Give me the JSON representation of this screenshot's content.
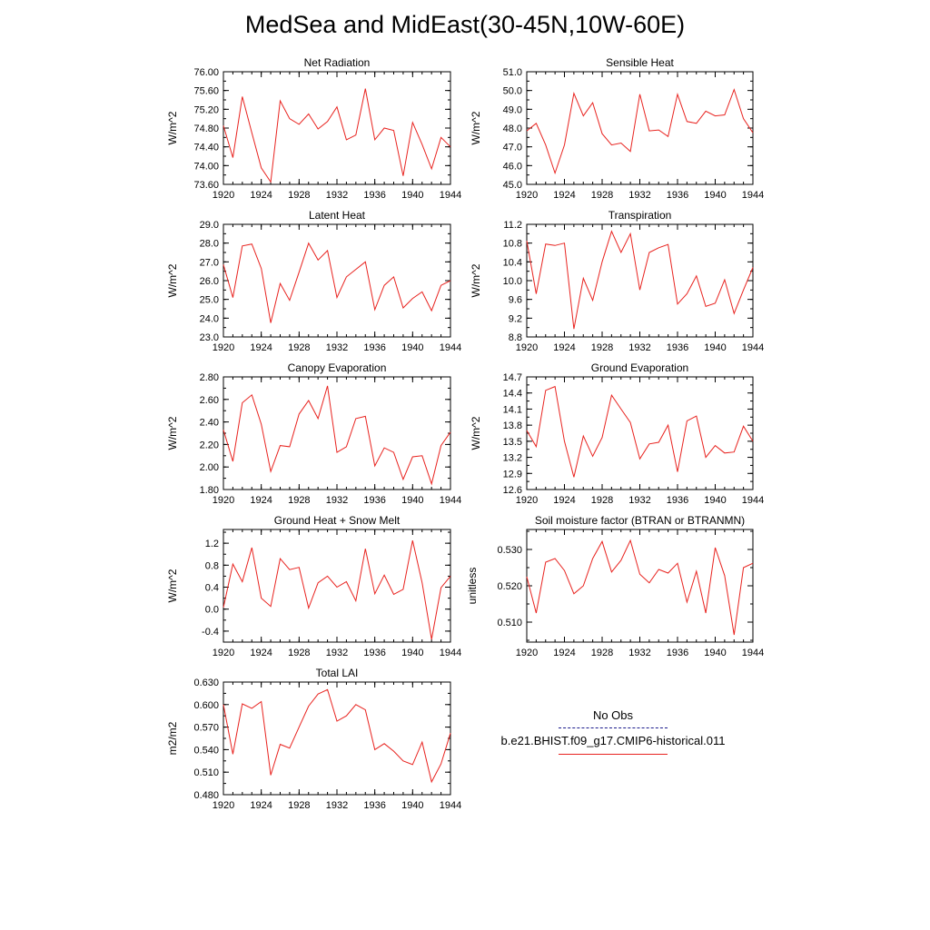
{
  "title": "MedSea and MidEast(30-45N,10W-60E)",
  "legend": {
    "obs_label": "No Obs",
    "obs_color": "#1a1a8c",
    "model_label": "b.e21.BHIST.f09_g17.CMIP6-historical.011",
    "model_color": "#e8231f"
  },
  "chart_data": [
    {
      "type": "line",
      "title": "Net Radiation",
      "ylabel": "W/m^2",
      "xlim": [
        1920,
        1944
      ],
      "ylim": [
        73.6,
        76.0
      ],
      "xticks": [
        1920,
        1924,
        1928,
        1932,
        1936,
        1940,
        1944
      ],
      "yticks": [
        "73.60",
        "74.00",
        "74.40",
        "74.80",
        "75.20",
        "75.60",
        "76.00"
      ],
      "x": [
        1920,
        1921,
        1922,
        1923,
        1924,
        1925,
        1926,
        1927,
        1928,
        1929,
        1930,
        1931,
        1932,
        1933,
        1934,
        1935,
        1936,
        1937,
        1938,
        1939,
        1940,
        1941,
        1942,
        1943,
        1944
      ],
      "series": [
        {
          "values": [
            74.85,
            74.17,
            75.47,
            74.7,
            73.95,
            73.65,
            75.38,
            75.0,
            74.88,
            75.1,
            74.78,
            74.94,
            75.25,
            74.55,
            74.65,
            75.64,
            74.55,
            74.8,
            74.75,
            73.78,
            74.92,
            74.45,
            73.93,
            74.6,
            74.4
          ]
        }
      ]
    },
    {
      "type": "line",
      "title": "Sensible Heat",
      "ylabel": "W/m^2",
      "xlim": [
        1920,
        1944
      ],
      "ylim": [
        45.0,
        51.0
      ],
      "xticks": [
        1920,
        1924,
        1928,
        1932,
        1936,
        1940,
        1944
      ],
      "yticks": [
        "45.0",
        "46.0",
        "47.0",
        "48.0",
        "49.0",
        "50.0",
        "51.0"
      ],
      "x": [
        1920,
        1921,
        1922,
        1923,
        1924,
        1925,
        1926,
        1927,
        1928,
        1929,
        1930,
        1931,
        1932,
        1933,
        1934,
        1935,
        1936,
        1937,
        1938,
        1939,
        1940,
        1941,
        1942,
        1943,
        1944
      ],
      "series": [
        {
          "values": [
            47.85,
            48.25,
            47.1,
            45.6,
            47.1,
            49.85,
            48.65,
            49.35,
            47.7,
            47.1,
            47.2,
            46.75,
            49.8,
            47.85,
            47.9,
            47.55,
            49.8,
            48.35,
            48.25,
            48.9,
            48.65,
            48.7,
            50.05,
            48.5,
            47.75
          ]
        }
      ]
    },
    {
      "type": "line",
      "title": "Latent Heat",
      "ylabel": "W/m^2",
      "xlim": [
        1920,
        1944
      ],
      "ylim": [
        23.0,
        29.0
      ],
      "xticks": [
        1920,
        1924,
        1928,
        1932,
        1936,
        1940,
        1944
      ],
      "yticks": [
        "23.0",
        "24.0",
        "25.0",
        "26.0",
        "27.0",
        "28.0",
        "29.0"
      ],
      "x": [
        1920,
        1921,
        1922,
        1923,
        1924,
        1925,
        1926,
        1927,
        1928,
        1929,
        1930,
        1931,
        1932,
        1933,
        1934,
        1935,
        1936,
        1937,
        1938,
        1939,
        1940,
        1941,
        1942,
        1943,
        1944
      ],
      "series": [
        {
          "values": [
            26.85,
            25.1,
            27.85,
            27.95,
            26.65,
            23.75,
            25.85,
            24.95,
            26.45,
            28.0,
            27.1,
            27.6,
            25.1,
            26.2,
            26.6,
            27.0,
            24.45,
            25.75,
            26.2,
            24.55,
            25.05,
            25.4,
            24.4,
            25.75,
            26.0
          ]
        }
      ]
    },
    {
      "type": "line",
      "title": "Transpiration",
      "ylabel": "W/m^2",
      "xlim": [
        1920,
        1944
      ],
      "ylim": [
        8.8,
        11.2
      ],
      "xticks": [
        1920,
        1924,
        1928,
        1932,
        1936,
        1940,
        1944
      ],
      "yticks": [
        "8.8",
        "9.2",
        "9.6",
        "10.0",
        "10.4",
        "10.8",
        "11.2"
      ],
      "x": [
        1920,
        1921,
        1922,
        1923,
        1924,
        1925,
        1926,
        1927,
        1928,
        1929,
        1930,
        1931,
        1932,
        1933,
        1934,
        1935,
        1936,
        1937,
        1938,
        1939,
        1940,
        1941,
        1942,
        1943,
        1944
      ],
      "series": [
        {
          "values": [
            10.85,
            9.72,
            10.78,
            10.75,
            10.8,
            8.97,
            10.05,
            9.58,
            10.4,
            11.05,
            10.6,
            11.0,
            9.8,
            10.6,
            10.7,
            10.77,
            9.5,
            9.72,
            10.1,
            9.45,
            9.52,
            10.02,
            9.3,
            9.8,
            10.28
          ]
        }
      ]
    },
    {
      "type": "line",
      "title": "Canopy Evaporation",
      "ylabel": "W/m^2",
      "xlim": [
        1920,
        1944
      ],
      "ylim": [
        1.8,
        2.8
      ],
      "xticks": [
        1920,
        1924,
        1928,
        1932,
        1936,
        1940,
        1944
      ],
      "yticks": [
        "1.80",
        "2.00",
        "2.20",
        "2.40",
        "2.60",
        "2.80"
      ],
      "x": [
        1920,
        1921,
        1922,
        1923,
        1924,
        1925,
        1926,
        1927,
        1928,
        1929,
        1930,
        1931,
        1932,
        1933,
        1934,
        1935,
        1936,
        1937,
        1938,
        1939,
        1940,
        1941,
        1942,
        1943,
        1944
      ],
      "series": [
        {
          "values": [
            2.33,
            2.05,
            2.57,
            2.64,
            2.38,
            1.96,
            2.19,
            2.18,
            2.47,
            2.59,
            2.43,
            2.72,
            2.13,
            2.18,
            2.43,
            2.45,
            2.01,
            2.17,
            2.13,
            1.89,
            2.09,
            2.1,
            1.85,
            2.19,
            2.31
          ]
        }
      ]
    },
    {
      "type": "line",
      "title": "Ground Evaporation",
      "ylabel": "W/m^2",
      "xlim": [
        1920,
        1944
      ],
      "ylim": [
        12.6,
        14.7
      ],
      "xticks": [
        1920,
        1924,
        1928,
        1932,
        1936,
        1940,
        1944
      ],
      "yticks": [
        "12.6",
        "12.9",
        "13.2",
        "13.5",
        "13.8",
        "14.1",
        "14.4",
        "14.7"
      ],
      "x": [
        1920,
        1921,
        1922,
        1923,
        1924,
        1925,
        1926,
        1927,
        1928,
        1929,
        1930,
        1931,
        1932,
        1933,
        1934,
        1935,
        1936,
        1937,
        1938,
        1939,
        1940,
        1941,
        1942,
        1943,
        1944
      ],
      "series": [
        {
          "values": [
            13.7,
            13.4,
            14.45,
            14.52,
            13.5,
            12.83,
            13.6,
            13.22,
            13.57,
            14.36,
            14.1,
            13.85,
            13.17,
            13.45,
            13.48,
            13.8,
            12.93,
            13.88,
            13.97,
            13.2,
            13.42,
            13.28,
            13.3,
            13.78,
            13.5
          ]
        }
      ]
    },
    {
      "type": "line",
      "title": "Ground Heat + Snow Melt",
      "ylabel": "W/m^2",
      "xlim": [
        1920,
        1944
      ],
      "ylim": [
        -0.6,
        1.45
      ],
      "xticks": [
        1920,
        1924,
        1928,
        1932,
        1936,
        1940,
        1944
      ],
      "yticks": [
        "-0.4",
        "0.0",
        "0.4",
        "0.8",
        "1.2"
      ],
      "x": [
        1920,
        1921,
        1922,
        1923,
        1924,
        1925,
        1926,
        1927,
        1928,
        1929,
        1930,
        1931,
        1932,
        1933,
        1934,
        1935,
        1936,
        1937,
        1938,
        1939,
        1940,
        1941,
        1942,
        1943,
        1944
      ],
      "series": [
        {
          "values": [
            0.03,
            0.82,
            0.5,
            1.12,
            0.2,
            0.05,
            0.92,
            0.72,
            0.76,
            0.02,
            0.48,
            0.6,
            0.4,
            0.5,
            0.15,
            1.1,
            0.28,
            0.62,
            0.27,
            0.36,
            1.25,
            0.48,
            -0.55,
            0.39,
            0.6
          ]
        }
      ]
    },
    {
      "type": "line",
      "title": "Soil moisture factor (BTRAN or BTRANMN)",
      "ylabel": "unitless",
      "xlim": [
        1920,
        1944
      ],
      "ylim": [
        0.5045,
        0.5355
      ],
      "xticks": [
        1920,
        1924,
        1928,
        1932,
        1936,
        1940,
        1944
      ],
      "yticks": [
        "0.510",
        "0.520",
        "0.530"
      ],
      "x": [
        1920,
        1921,
        1922,
        1923,
        1924,
        1925,
        1926,
        1927,
        1928,
        1929,
        1930,
        1931,
        1932,
        1933,
        1934,
        1935,
        1936,
        1937,
        1938,
        1939,
        1940,
        1941,
        1942,
        1943,
        1944
      ],
      "series": [
        {
          "values": [
            0.5225,
            0.5125,
            0.5265,
            0.5275,
            0.5242,
            0.5178,
            0.52,
            0.5275,
            0.5322,
            0.5238,
            0.527,
            0.5325,
            0.5232,
            0.5208,
            0.5245,
            0.5235,
            0.5262,
            0.5155,
            0.524,
            0.5125,
            0.5305,
            0.5228,
            0.5065,
            0.525,
            0.5262
          ]
        }
      ]
    },
    {
      "type": "line",
      "title": "Total LAI",
      "ylabel": "m2/m2",
      "xlim": [
        1920,
        1944
      ],
      "ylim": [
        0.48,
        0.63
      ],
      "xticks": [
        1920,
        1924,
        1928,
        1932,
        1936,
        1940,
        1944
      ],
      "yticks": [
        "0.480",
        "0.510",
        "0.540",
        "0.570",
        "0.600",
        "0.630"
      ],
      "x": [
        1920,
        1921,
        1922,
        1923,
        1924,
        1925,
        1926,
        1927,
        1928,
        1929,
        1930,
        1931,
        1932,
        1933,
        1934,
        1935,
        1936,
        1937,
        1938,
        1939,
        1940,
        1941,
        1942,
        1943,
        1944
      ],
      "series": [
        {
          "values": [
            0.6,
            0.534,
            0.601,
            0.595,
            0.604,
            0.506,
            0.547,
            0.542,
            0.57,
            0.598,
            0.614,
            0.62,
            0.578,
            0.585,
            0.6,
            0.593,
            0.54,
            0.548,
            0.538,
            0.525,
            0.52,
            0.55,
            0.497,
            0.521,
            0.562
          ]
        }
      ]
    }
  ]
}
